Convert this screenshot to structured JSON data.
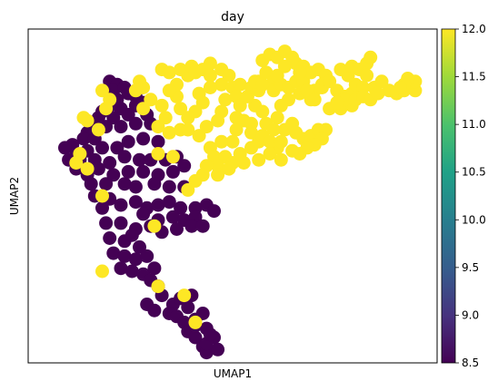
{
  "chart_data": {
    "type": "scatter",
    "title": "day",
    "xlabel": "UMAP1",
    "ylabel": "UMAP2",
    "xlim": [
      0,
      100
    ],
    "ylim": [
      0,
      100
    ],
    "grid": false,
    "legend": "colorbar (right)",
    "colorbar": {
      "colormap": "viridis",
      "range": [
        8.5,
        12.0
      ],
      "ticks": [
        "8.5",
        "9.0",
        "9.5",
        "10.0",
        "10.5",
        "11.0",
        "11.5",
        "12.0"
      ],
      "colors": {
        "low": "#440154",
        "mid": "#21918c",
        "high": "#fde725"
      }
    },
    "series": [
      {
        "value": 8.5,
        "color": "#440154",
        "points": [
          [
            17,
            88
          ],
          [
            19,
            87
          ],
          [
            18,
            85
          ],
          [
            21,
            86
          ],
          [
            22,
            84
          ],
          [
            19,
            82
          ],
          [
            24,
            83
          ],
          [
            17,
            80
          ],
          [
            20,
            79
          ],
          [
            24,
            80
          ],
          [
            26,
            81
          ],
          [
            15,
            78
          ],
          [
            14,
            76
          ],
          [
            18,
            76
          ],
          [
            22,
            77
          ],
          [
            27,
            77
          ],
          [
            13,
            73
          ],
          [
            16,
            73
          ],
          [
            20,
            73
          ],
          [
            24,
            74
          ],
          [
            28,
            74
          ],
          [
            11,
            71
          ],
          [
            10,
            69
          ],
          [
            13,
            69
          ],
          [
            7,
            67
          ],
          [
            5,
            66
          ],
          [
            8,
            64
          ],
          [
            11,
            65
          ],
          [
            15,
            66
          ],
          [
            19,
            66
          ],
          [
            22,
            68
          ],
          [
            26,
            69
          ],
          [
            30,
            68
          ],
          [
            6,
            62
          ],
          [
            9,
            62
          ],
          [
            13,
            62
          ],
          [
            17,
            61
          ],
          [
            21,
            63
          ],
          [
            25,
            62
          ],
          [
            28,
            62
          ],
          [
            32,
            62
          ],
          [
            35,
            63
          ],
          [
            8,
            59
          ],
          [
            11,
            57
          ],
          [
            14,
            59
          ],
          [
            18,
            57
          ],
          [
            22,
            58
          ],
          [
            26,
            58
          ],
          [
            30,
            57
          ],
          [
            34,
            58
          ],
          [
            37,
            60
          ],
          [
            12,
            54
          ],
          [
            16,
            54
          ],
          [
            21,
            54
          ],
          [
            24,
            53
          ],
          [
            29,
            54
          ],
          [
            33,
            53
          ],
          [
            37,
            53
          ],
          [
            13,
            50
          ],
          [
            17,
            49
          ],
          [
            20,
            47
          ],
          [
            24,
            48
          ],
          [
            27,
            46
          ],
          [
            30,
            47
          ],
          [
            33,
            48
          ],
          [
            36,
            46
          ],
          [
            40,
            46
          ],
          [
            43,
            47
          ],
          [
            15,
            46
          ],
          [
            26,
            44
          ],
          [
            30,
            42
          ],
          [
            34,
            43
          ],
          [
            37,
            42
          ],
          [
            40,
            43
          ],
          [
            45,
            45
          ],
          [
            16,
            41
          ],
          [
            20,
            41
          ],
          [
            24,
            39
          ],
          [
            28,
            40
          ],
          [
            31,
            38
          ],
          [
            35,
            39
          ],
          [
            39,
            40
          ],
          [
            42,
            40
          ],
          [
            17,
            36
          ],
          [
            21,
            35
          ],
          [
            23,
            37
          ],
          [
            25,
            33
          ],
          [
            18,
            31
          ],
          [
            21,
            30
          ],
          [
            24,
            29
          ],
          [
            27,
            30
          ],
          [
            20,
            26
          ],
          [
            23,
            25
          ],
          [
            26,
            24
          ],
          [
            29,
            26
          ],
          [
            28,
            22
          ],
          [
            30,
            20
          ],
          [
            31,
            17
          ],
          [
            34,
            14
          ],
          [
            36,
            16
          ],
          [
            38,
            13
          ],
          [
            39,
            17
          ],
          [
            27,
            14
          ],
          [
            29,
            12
          ],
          [
            33,
            11
          ],
          [
            35,
            10
          ],
          [
            37,
            8
          ],
          [
            40,
            9
          ],
          [
            42,
            11
          ],
          [
            38,
            5
          ],
          [
            40,
            3
          ],
          [
            43,
            6
          ],
          [
            45,
            3
          ],
          [
            42,
            0
          ],
          [
            43,
            -2
          ],
          [
            46,
            -1
          ],
          [
            43,
            1
          ],
          [
            44,
            4
          ],
          [
            40,
            7
          ]
        ]
      },
      {
        "value": 12.0,
        "color": "#fde725",
        "points": [
          [
            15,
            85
          ],
          [
            17,
            82
          ],
          [
            16,
            79
          ],
          [
            11,
            75
          ],
          [
            10,
            76
          ],
          [
            14,
            72
          ],
          [
            9,
            64
          ],
          [
            8,
            61
          ],
          [
            11,
            59
          ],
          [
            15,
            50
          ],
          [
            30,
            64
          ],
          [
            34,
            63
          ],
          [
            29,
            40
          ],
          [
            15,
            25
          ],
          [
            30,
            20
          ],
          [
            40,
            8
          ],
          [
            37,
            17
          ],
          [
            26,
            79
          ],
          [
            28,
            82
          ],
          [
            24,
            85
          ],
          [
            25,
            88
          ],
          [
            26,
            86
          ],
          [
            31,
            92
          ],
          [
            33,
            91
          ],
          [
            36,
            92
          ],
          [
            38,
            90
          ],
          [
            39,
            93
          ],
          [
            40,
            91
          ],
          [
            42,
            92
          ],
          [
            44,
            94
          ],
          [
            44,
            90
          ],
          [
            47,
            92
          ],
          [
            49,
            90
          ],
          [
            47,
            87
          ],
          [
            50,
            86
          ],
          [
            44,
            86
          ],
          [
            41,
            84
          ],
          [
            42,
            81
          ],
          [
            40,
            78
          ],
          [
            38,
            76
          ],
          [
            36,
            79
          ],
          [
            35,
            83
          ],
          [
            35,
            87
          ],
          [
            33,
            85
          ],
          [
            31,
            80
          ],
          [
            32,
            76
          ],
          [
            30,
            73
          ],
          [
            33,
            71
          ],
          [
            36,
            72
          ],
          [
            38,
            72
          ],
          [
            41,
            70
          ],
          [
            43,
            73
          ],
          [
            46,
            75
          ],
          [
            47,
            78
          ],
          [
            48,
            82
          ],
          [
            51,
            83
          ],
          [
            52,
            80
          ],
          [
            51,
            76
          ],
          [
            51,
            72
          ],
          [
            53,
            75
          ],
          [
            55,
            74
          ],
          [
            55,
            71
          ],
          [
            50,
            68
          ],
          [
            47,
            68
          ],
          [
            44,
            66
          ],
          [
            45,
            63
          ],
          [
            48,
            63
          ],
          [
            46,
            60
          ],
          [
            43,
            60
          ],
          [
            42,
            57
          ],
          [
            40,
            55
          ],
          [
            38,
            52
          ],
          [
            50,
            61
          ],
          [
            52,
            64
          ],
          [
            55,
            66
          ],
          [
            57,
            68
          ],
          [
            58,
            70
          ],
          [
            59,
            74
          ],
          [
            58,
            78
          ],
          [
            56,
            80
          ],
          [
            54,
            83
          ],
          [
            52,
            87
          ],
          [
            55,
            86
          ],
          [
            57,
            88
          ],
          [
            59,
            91
          ],
          [
            61,
            88
          ],
          [
            61,
            85
          ],
          [
            63,
            87
          ],
          [
            65,
            86
          ],
          [
            67,
            88
          ],
          [
            69,
            88
          ],
          [
            68,
            84
          ],
          [
            65,
            82
          ],
          [
            63,
            80
          ],
          [
            62,
            76
          ],
          [
            64,
            72
          ],
          [
            66,
            74
          ],
          [
            67,
            71
          ],
          [
            69,
            69
          ],
          [
            71,
            70
          ],
          [
            73,
            72
          ],
          [
            75,
            72
          ],
          [
            74,
            69
          ],
          [
            72,
            67
          ],
          [
            70,
            66
          ],
          [
            68,
            64
          ],
          [
            66,
            65
          ],
          [
            62,
            66
          ],
          [
            60,
            68
          ],
          [
            60,
            64
          ],
          [
            63,
            62
          ],
          [
            57,
            62
          ],
          [
            53,
            61
          ],
          [
            49,
            59
          ],
          [
            46,
            57
          ],
          [
            61,
            72
          ],
          [
            63,
            68
          ],
          [
            58,
            95
          ],
          [
            60,
            97
          ],
          [
            62,
            96
          ],
          [
            64,
            98
          ],
          [
            66,
            96
          ],
          [
            67,
            94
          ],
          [
            69,
            93
          ],
          [
            71,
            91
          ],
          [
            73,
            92
          ],
          [
            75,
            90
          ],
          [
            74,
            87
          ],
          [
            72,
            85
          ],
          [
            71,
            82
          ],
          [
            74,
            86
          ],
          [
            76,
            88
          ],
          [
            78,
            85
          ],
          [
            80,
            83
          ],
          [
            82,
            84
          ],
          [
            83,
            87
          ],
          [
            81,
            90
          ],
          [
            79,
            92
          ],
          [
            82,
            93
          ],
          [
            84,
            92
          ],
          [
            86,
            94
          ],
          [
            87,
            96
          ],
          [
            86,
            90
          ],
          [
            85,
            86
          ],
          [
            88,
            86
          ],
          [
            90,
            88
          ],
          [
            92,
            85
          ],
          [
            94,
            84
          ],
          [
            96,
            85
          ],
          [
            97,
            87
          ],
          [
            98,
            86
          ],
          [
            99,
            85
          ],
          [
            98,
            88
          ],
          [
            99,
            88
          ],
          [
            97,
            89
          ],
          [
            96,
            87
          ],
          [
            95,
            86
          ],
          [
            57,
            85
          ],
          [
            56,
            88
          ],
          [
            58,
            87
          ],
          [
            62,
            90
          ],
          [
            64,
            93
          ],
          [
            68,
            91
          ],
          [
            70,
            85
          ],
          [
            72,
            82
          ],
          [
            76,
            79
          ],
          [
            79,
            79
          ],
          [
            82,
            80
          ],
          [
            80,
            82
          ],
          [
            78,
            81
          ],
          [
            83,
            82
          ],
          [
            85,
            83
          ],
          [
            87,
            82
          ],
          [
            89,
            84
          ]
        ]
      }
    ]
  }
}
